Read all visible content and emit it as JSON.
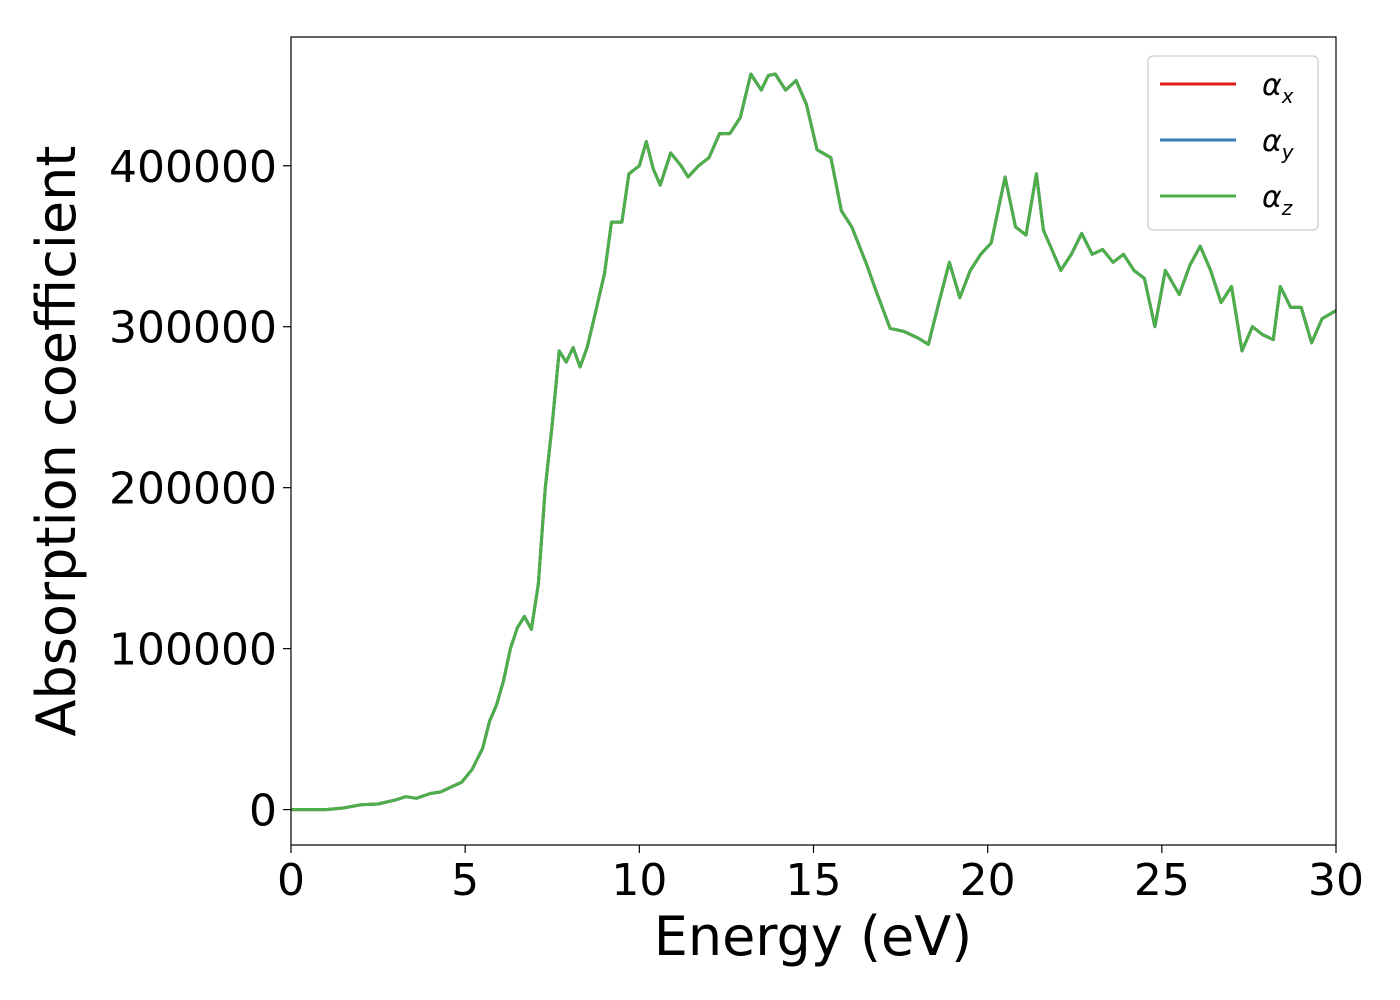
{
  "chart_data": {
    "type": "line",
    "title": "",
    "xlabel": "Energy (eV)",
    "ylabel": "Absorption coefficient",
    "xlim": [
      0,
      30
    ],
    "ylim": [
      -22000,
      480000
    ],
    "grid": false,
    "legend_position": "top-right",
    "x_ticks": [
      "0",
      "5",
      "10",
      "15",
      "20",
      "25",
      "30"
    ],
    "x_tick_values": [
      0,
      5,
      10,
      15,
      20,
      25,
      30
    ],
    "y_ticks": [
      "0",
      "100000",
      "200000",
      "300000",
      "400000"
    ],
    "y_tick_values": [
      0,
      100000,
      200000,
      300000,
      400000
    ],
    "x": [
      0,
      0.5,
      1,
      1.5,
      2,
      2.5,
      3,
      3.3,
      3.6,
      4,
      4.3,
      4.7,
      4.9,
      5.2,
      5.5,
      5.7,
      5.9,
      6.1,
      6.3,
      6.5,
      6.7,
      6.9,
      7.1,
      7.3,
      7.5,
      7.7,
      7.9,
      8.1,
      8.3,
      8.5,
      8.7,
      9,
      9.2,
      9.5,
      9.7,
      10,
      10.2,
      10.4,
      10.6,
      10.9,
      11.2,
      11.4,
      11.7,
      12,
      12.3,
      12.6,
      12.9,
      13.2,
      13.5,
      13.7,
      13.9,
      14.2,
      14.5,
      14.8,
      15.1,
      15.5,
      15.8,
      16.1,
      16.5,
      16.8,
      17.2,
      17.6,
      18,
      18.3,
      18.6,
      18.9,
      19.2,
      19.5,
      19.8,
      20.1,
      20.5,
      20.8,
      21.1,
      21.4,
      21.6,
      21.8,
      22.1,
      22.4,
      22.7,
      23,
      23.3,
      23.6,
      23.9,
      24.2,
      24.5,
      24.8,
      25.1,
      25.5,
      25.8,
      26.1,
      26.4,
      26.7,
      27,
      27.3,
      27.6,
      27.9,
      28.2,
      28.4,
      28.7,
      29,
      29.3,
      29.6,
      30
    ],
    "series": [
      {
        "name": "α",
        "subscript": "x",
        "color": "#e41a1c",
        "values": [
          0,
          0,
          0,
          1000,
          3000,
          3500,
          6000,
          8000,
          7000,
          10000,
          11000,
          15000,
          17000,
          25000,
          38000,
          55000,
          65000,
          80000,
          100000,
          113000,
          120000,
          112000,
          140000,
          200000,
          240000,
          285000,
          278000,
          287000,
          275000,
          287000,
          305000,
          333000,
          365000,
          365000,
          395000,
          400000,
          415000,
          398000,
          388000,
          408000,
          400000,
          393000,
          400000,
          405000,
          420000,
          420000,
          430000,
          457000,
          447000,
          456000,
          457000,
          447000,
          453000,
          438000,
          410000,
          405000,
          372000,
          362000,
          340000,
          322000,
          299000,
          297000,
          293000,
          289000,
          315000,
          340000,
          318000,
          335000,
          345000,
          352000,
          393000,
          362000,
          357000,
          395000,
          360000,
          350000,
          335000,
          345000,
          358000,
          345000,
          348000,
          340000,
          345000,
          335000,
          330000,
          300000,
          335000,
          320000,
          338000,
          350000,
          335000,
          315000,
          325000,
          285000,
          300000,
          295000,
          292000,
          325000,
          312000,
          312000,
          290000,
          305000,
          310000
        ],
        "values_note": ""
      },
      {
        "name": "α",
        "subscript": "y",
        "color": "#377eb8",
        "values": [
          0,
          0,
          0,
          1000,
          3000,
          3500,
          6000,
          8000,
          7000,
          10000,
          11000,
          15000,
          17000,
          25000,
          38000,
          55000,
          65000,
          80000,
          100000,
          113000,
          120000,
          112000,
          140000,
          200000,
          240000,
          285000,
          278000,
          287000,
          275000,
          287000,
          305000,
          333000,
          365000,
          365000,
          395000,
          400000,
          415000,
          398000,
          388000,
          408000,
          400000,
          393000,
          400000,
          405000,
          420000,
          420000,
          430000,
          457000,
          447000,
          456000,
          457000,
          447000,
          453000,
          438000,
          410000,
          405000,
          372000,
          362000,
          340000,
          322000,
          299000,
          297000,
          293000,
          289000,
          315000,
          340000,
          318000,
          335000,
          345000,
          352000,
          393000,
          362000,
          357000,
          395000,
          360000,
          350000,
          335000,
          345000,
          358000,
          345000,
          348000,
          340000,
          345000,
          335000,
          330000,
          300000,
          335000,
          320000,
          338000,
          350000,
          335000,
          315000,
          325000,
          285000,
          300000,
          295000,
          292000,
          325000,
          312000,
          312000,
          290000,
          305000,
          310000
        ]
      },
      {
        "name": "α",
        "subscript": "z",
        "color": "#4daf4a",
        "values": [
          0,
          0,
          0,
          1000,
          3000,
          3500,
          6000,
          8000,
          7000,
          10000,
          11000,
          15000,
          17000,
          25000,
          38000,
          55000,
          65000,
          80000,
          100000,
          113000,
          120000,
          112000,
          140000,
          200000,
          240000,
          285000,
          278000,
          287000,
          275000,
          287000,
          305000,
          333000,
          365000,
          365000,
          395000,
          400000,
          415000,
          398000,
          388000,
          408000,
          400000,
          393000,
          400000,
          405000,
          420000,
          420000,
          430000,
          457000,
          447000,
          456000,
          457000,
          447000,
          453000,
          438000,
          410000,
          405000,
          372000,
          362000,
          340000,
          322000,
          299000,
          297000,
          293000,
          289000,
          315000,
          340000,
          318000,
          335000,
          345000,
          352000,
          393000,
          362000,
          357000,
          395000,
          360000,
          350000,
          335000,
          345000,
          358000,
          345000,
          348000,
          340000,
          345000,
          335000,
          330000,
          300000,
          335000,
          320000,
          338000,
          350000,
          335000,
          315000,
          325000,
          285000,
          300000,
          295000,
          292000,
          325000,
          312000,
          312000,
          290000,
          305000,
          310000
        ]
      }
    ]
  }
}
